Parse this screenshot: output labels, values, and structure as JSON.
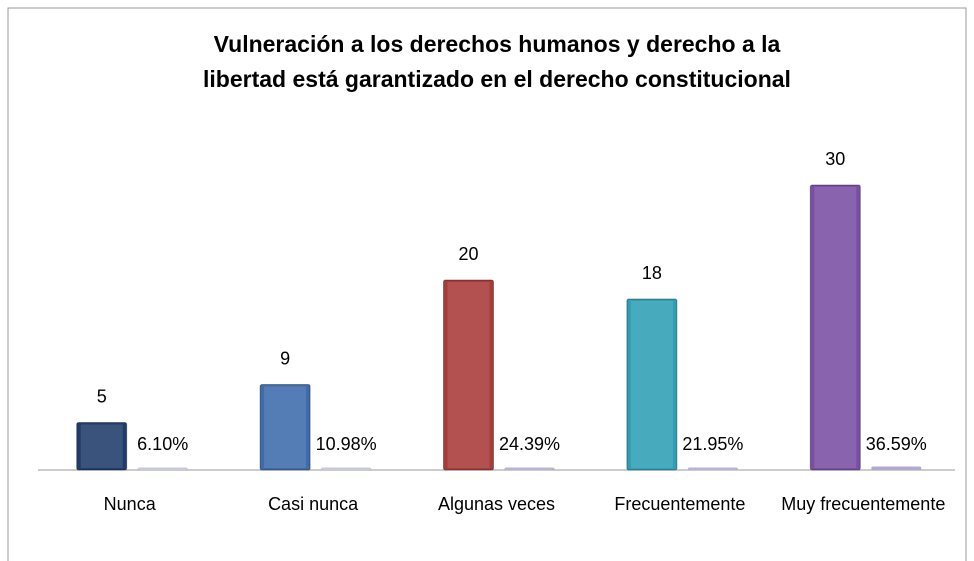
{
  "chart_data": {
    "type": "bar",
    "title": [
      "Vulneración a los derechos humanos y derecho a la",
      "libertad está garantizado en el derecho constitucional"
    ],
    "categories": [
      "Nunca",
      "Casi nunca",
      "Algunas veces",
      "Frecuentemente",
      "Muy frecuentemente"
    ],
    "series": [
      {
        "colors": [
          "#1f3c6b",
          "#3d6bab",
          "#a83a38",
          "#2e9fb4",
          "#7a4ea3"
        ],
        "values": [
          5,
          9,
          20,
          18,
          30
        ]
      },
      {
        "colors": [
          "#c9c9dc",
          "#c9c9dc",
          "#b9b3d3",
          "#b9b3d3",
          "#b3a8d0"
        ],
        "values": [
          0.061,
          0.1098,
          0.2439,
          0.2195,
          0.3659
        ],
        "value_labels": [
          "6.10%",
          "10.98%",
          "24.39%",
          "21.95%",
          "36.59%"
        ]
      }
    ],
    "ylim": [
      0,
      35
    ]
  }
}
